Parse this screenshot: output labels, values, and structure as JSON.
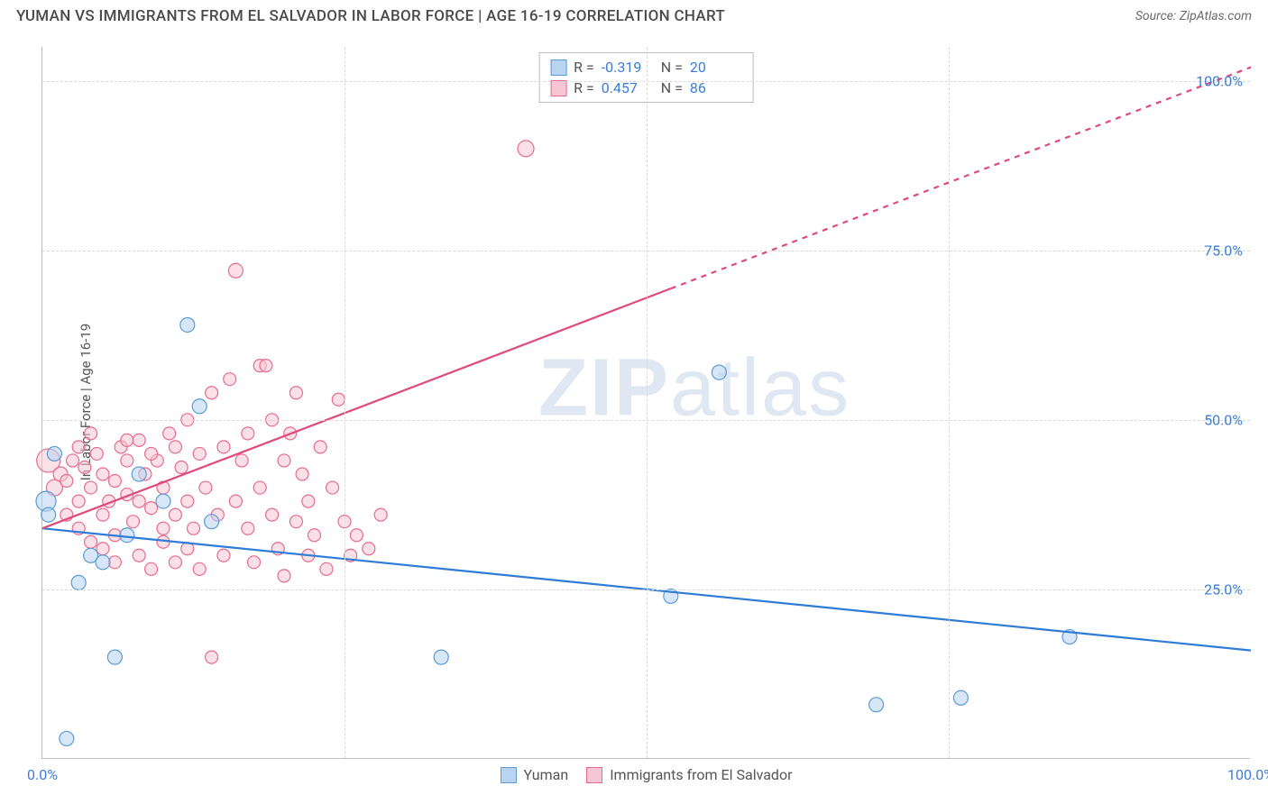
{
  "header": {
    "title": "YUMAN VS IMMIGRANTS FROM EL SALVADOR IN LABOR FORCE | AGE 16-19 CORRELATION CHART",
    "source": "Source: ZipAtlas.com"
  },
  "ylabel": "In Labor Force | Age 16-19",
  "watermark": {
    "bold": "ZIP",
    "light": "atlas"
  },
  "chart": {
    "type": "scatter",
    "xlim": [
      0,
      100
    ],
    "ylim": [
      0,
      105
    ],
    "xtick_labels": [
      "0.0%",
      "100.0%"
    ],
    "xtick_positions": [
      0,
      100
    ],
    "ytick_labels": [
      "25.0%",
      "50.0%",
      "75.0%",
      "100.0%"
    ],
    "ytick_positions": [
      25,
      50,
      75,
      100
    ],
    "grid_color": "#d9d9d9",
    "background_color": "#ffffff",
    "axis_color": "#bdbdbd",
    "series": {
      "yuman": {
        "label": "Yuman",
        "fill": "#b8d4f0",
        "stroke": "#5a9bd8",
        "line_color": "#2e7cd6",
        "fill_opacity": 0.55,
        "marker_radius": 8,
        "R": "-0.319",
        "N": "20",
        "trend": {
          "x1": 0,
          "y1": 34,
          "x2": 100,
          "y2": 16,
          "dashed_from_x": null
        },
        "points": [
          {
            "x": 0.3,
            "y": 38,
            "r": 11
          },
          {
            "x": 0.5,
            "y": 36,
            "r": 8
          },
          {
            "x": 1,
            "y": 45,
            "r": 8
          },
          {
            "x": 2,
            "y": 3,
            "r": 8
          },
          {
            "x": 3,
            "y": 26,
            "r": 8
          },
          {
            "x": 4,
            "y": 30,
            "r": 8
          },
          {
            "x": 6,
            "y": 15,
            "r": 8
          },
          {
            "x": 8,
            "y": 42,
            "r": 8
          },
          {
            "x": 12,
            "y": 64,
            "r": 8
          },
          {
            "x": 13,
            "y": 52,
            "r": 8
          },
          {
            "x": 14,
            "y": 35,
            "r": 8
          },
          {
            "x": 33,
            "y": 15,
            "r": 8
          },
          {
            "x": 52,
            "y": 24,
            "r": 8
          },
          {
            "x": 56,
            "y": 57,
            "r": 8
          },
          {
            "x": 69,
            "y": 8,
            "r": 8
          },
          {
            "x": 76,
            "y": 9,
            "r": 8
          },
          {
            "x": 85,
            "y": 18,
            "r": 8
          },
          {
            "x": 5,
            "y": 29,
            "r": 8
          },
          {
            "x": 7,
            "y": 33,
            "r": 8
          },
          {
            "x": 10,
            "y": 38,
            "r": 8
          }
        ]
      },
      "elsalvador": {
        "label": "Immigrants from El Salvador",
        "fill": "#f7c6d4",
        "stroke": "#e66b8f",
        "line_color": "#e04a7a",
        "fill_opacity": 0.55,
        "marker_radius": 7,
        "R": "0.457",
        "N": "86",
        "trend": {
          "x1": 0,
          "y1": 34,
          "x2": 100,
          "y2": 102,
          "dashed_from_x": 52
        },
        "points": [
          {
            "x": 0.5,
            "y": 44,
            "r": 13
          },
          {
            "x": 1,
            "y": 40,
            "r": 9
          },
          {
            "x": 1.5,
            "y": 42,
            "r": 8
          },
          {
            "x": 2,
            "y": 36,
            "r": 7
          },
          {
            "x": 2,
            "y": 41,
            "r": 7
          },
          {
            "x": 2.5,
            "y": 44,
            "r": 7
          },
          {
            "x": 3,
            "y": 38,
            "r": 7
          },
          {
            "x": 3,
            "y": 34,
            "r": 7
          },
          {
            "x": 3.5,
            "y": 43,
            "r": 7
          },
          {
            "x": 4,
            "y": 40,
            "r": 7
          },
          {
            "x": 4,
            "y": 32,
            "r": 7
          },
          {
            "x": 4.5,
            "y": 45,
            "r": 7
          },
          {
            "x": 5,
            "y": 36,
            "r": 7
          },
          {
            "x": 5,
            "y": 42,
            "r": 7
          },
          {
            "x": 5.5,
            "y": 38,
            "r": 7
          },
          {
            "x": 6,
            "y": 41,
            "r": 7
          },
          {
            "x": 6,
            "y": 33,
            "r": 7
          },
          {
            "x": 6.5,
            "y": 46,
            "r": 7
          },
          {
            "x": 7,
            "y": 39,
            "r": 7
          },
          {
            "x": 7,
            "y": 44,
            "r": 7
          },
          {
            "x": 7.5,
            "y": 35,
            "r": 7
          },
          {
            "x": 8,
            "y": 47,
            "r": 7
          },
          {
            "x": 8,
            "y": 30,
            "r": 7
          },
          {
            "x": 8.5,
            "y": 42,
            "r": 7
          },
          {
            "x": 9,
            "y": 37,
            "r": 7
          },
          {
            "x": 9,
            "y": 28,
            "r": 7
          },
          {
            "x": 9.5,
            "y": 44,
            "r": 7
          },
          {
            "x": 10,
            "y": 40,
            "r": 7
          },
          {
            "x": 10,
            "y": 32,
            "r": 7
          },
          {
            "x": 10.5,
            "y": 48,
            "r": 7
          },
          {
            "x": 11,
            "y": 36,
            "r": 7
          },
          {
            "x": 11,
            "y": 29,
            "r": 7
          },
          {
            "x": 11.5,
            "y": 43,
            "r": 7
          },
          {
            "x": 12,
            "y": 38,
            "r": 7
          },
          {
            "x": 12,
            "y": 50,
            "r": 7
          },
          {
            "x": 12.5,
            "y": 34,
            "r": 7
          },
          {
            "x": 13,
            "y": 45,
            "r": 7
          },
          {
            "x": 13,
            "y": 28,
            "r": 7
          },
          {
            "x": 13.5,
            "y": 40,
            "r": 7
          },
          {
            "x": 14,
            "y": 54,
            "r": 7
          },
          {
            "x": 14,
            "y": 15,
            "r": 7
          },
          {
            "x": 14.5,
            "y": 36,
            "r": 7
          },
          {
            "x": 15,
            "y": 46,
            "r": 7
          },
          {
            "x": 15,
            "y": 30,
            "r": 7
          },
          {
            "x": 15.5,
            "y": 56,
            "r": 7
          },
          {
            "x": 16,
            "y": 38,
            "r": 7
          },
          {
            "x": 16,
            "y": 72,
            "r": 8
          },
          {
            "x": 16.5,
            "y": 44,
            "r": 7
          },
          {
            "x": 17,
            "y": 34,
            "r": 7
          },
          {
            "x": 17,
            "y": 48,
            "r": 7
          },
          {
            "x": 17.5,
            "y": 29,
            "r": 7
          },
          {
            "x": 18,
            "y": 58,
            "r": 7
          },
          {
            "x": 18,
            "y": 40,
            "r": 7
          },
          {
            "x": 18.5,
            "y": 58,
            "r": 7
          },
          {
            "x": 19,
            "y": 36,
            "r": 7
          },
          {
            "x": 19,
            "y": 50,
            "r": 7
          },
          {
            "x": 19.5,
            "y": 31,
            "r": 7
          },
          {
            "x": 20,
            "y": 44,
            "r": 7
          },
          {
            "x": 20,
            "y": 27,
            "r": 7
          },
          {
            "x": 20.5,
            "y": 48,
            "r": 7
          },
          {
            "x": 21,
            "y": 54,
            "r": 7
          },
          {
            "x": 21,
            "y": 35,
            "r": 7
          },
          {
            "x": 21.5,
            "y": 42,
            "r": 7
          },
          {
            "x": 22,
            "y": 30,
            "r": 7
          },
          {
            "x": 22,
            "y": 38,
            "r": 7
          },
          {
            "x": 22.5,
            "y": 33,
            "r": 7
          },
          {
            "x": 23,
            "y": 46,
            "r": 7
          },
          {
            "x": 23.5,
            "y": 28,
            "r": 7
          },
          {
            "x": 24,
            "y": 40,
            "r": 7
          },
          {
            "x": 24.5,
            "y": 53,
            "r": 7
          },
          {
            "x": 25,
            "y": 35,
            "r": 7
          },
          {
            "x": 25.5,
            "y": 30,
            "r": 7
          },
          {
            "x": 26,
            "y": 33,
            "r": 7
          },
          {
            "x": 27,
            "y": 31,
            "r": 7
          },
          {
            "x": 28,
            "y": 36,
            "r": 7
          },
          {
            "x": 40,
            "y": 90,
            "r": 9
          },
          {
            "x": 3,
            "y": 46,
            "r": 7
          },
          {
            "x": 4,
            "y": 48,
            "r": 7
          },
          {
            "x": 5,
            "y": 31,
            "r": 7
          },
          {
            "x": 6,
            "y": 29,
            "r": 7
          },
          {
            "x": 7,
            "y": 47,
            "r": 7
          },
          {
            "x": 8,
            "y": 38,
            "r": 7
          },
          {
            "x": 9,
            "y": 45,
            "r": 7
          },
          {
            "x": 10,
            "y": 34,
            "r": 7
          },
          {
            "x": 11,
            "y": 46,
            "r": 7
          },
          {
            "x": 12,
            "y": 31,
            "r": 7
          }
        ]
      }
    },
    "legend_top": [
      {
        "series": "yuman",
        "R_label": "R =",
        "N_label": "N ="
      },
      {
        "series": "elsalvador",
        "R_label": "R =",
        "N_label": "N ="
      }
    ]
  }
}
